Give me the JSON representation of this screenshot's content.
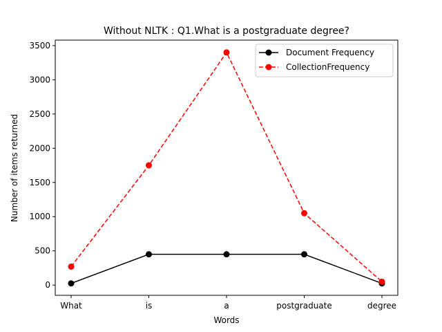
{
  "chart_data": {
    "type": "line",
    "title": "Without NLTK : Q1.What is a postgraduate degree?",
    "xlabel": "Words",
    "ylabel": "Number of items returned",
    "categories": [
      "What",
      "is",
      "a",
      "postgraduate",
      "degree"
    ],
    "ylim": [
      -150,
      3580
    ],
    "yticks": [
      0,
      500,
      1000,
      1500,
      2000,
      2500,
      3000,
      3500
    ],
    "grid": false,
    "legend_position": "top-right",
    "series": [
      {
        "name": "Document Frequency",
        "values": [
          25,
          450,
          450,
          450,
          25
        ],
        "color": "#000000",
        "line_style": "solid",
        "marker": "circle"
      },
      {
        "name": "CollectionFrequency",
        "values": [
          270,
          1750,
          3400,
          1050,
          50
        ],
        "color": "#ff0000",
        "line_style": "dashed",
        "marker": "circle"
      }
    ]
  }
}
